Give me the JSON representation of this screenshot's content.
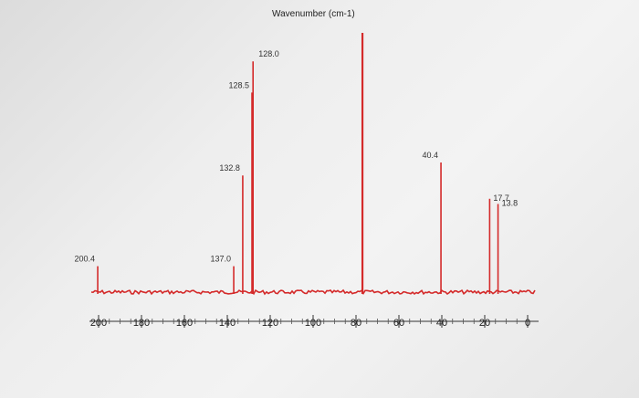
{
  "chart_data": {
    "type": "line",
    "title": "Wavenumber (cm-1)",
    "xlabel": "",
    "ylabel": "",
    "x_reversed": true,
    "xlim": [
      200,
      0
    ],
    "ylim": [
      0,
      1
    ],
    "x_ticks": [
      "200",
      "180",
      "160",
      "140",
      "120",
      "100",
      "80",
      "60",
      "40",
      "20",
      "0"
    ],
    "peaks": [
      {
        "x": 200.4,
        "height": 0.1,
        "label": "200.4"
      },
      {
        "x": 137.0,
        "height": 0.1,
        "label": "137.0"
      },
      {
        "x": 132.8,
        "height": 0.45,
        "label": "132.8"
      },
      {
        "x": 128.5,
        "height": 0.77,
        "label": "128.5"
      },
      {
        "x": 128.0,
        "height": 0.89,
        "label": "128.0"
      },
      {
        "x": 77.0,
        "height": 1.0,
        "label": ""
      },
      {
        "x": 40.4,
        "height": 0.5,
        "label": "40.4"
      },
      {
        "x": 17.7,
        "height": 0.36,
        "label": "17.7"
      },
      {
        "x": 13.8,
        "height": 0.34,
        "label": "13.8"
      }
    ],
    "grid": false,
    "line_color": "#d42a2a"
  }
}
